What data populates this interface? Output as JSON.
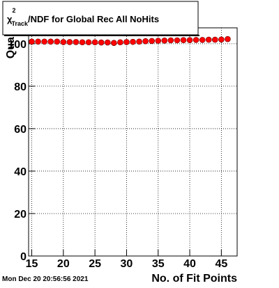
{
  "chart_data": {
    "type": "scatter",
    "title_symbol": "χ",
    "title_sup": "2",
    "title_sub": "Track",
    "title_rest": "/NDF for Global Rec All NoHits",
    "x_label": "No. of Fit Points",
    "y_label": "Quality",
    "timestamp": "Mon Dec 20 20:56:56 2021",
    "x": [
      15,
      16,
      17,
      18,
      19,
      20,
      21,
      22,
      23,
      24,
      25,
      26,
      27,
      28,
      29,
      30,
      31,
      32,
      33,
      34,
      35,
      36,
      37,
      38,
      39,
      40,
      41,
      42,
      43,
      44,
      45,
      46
    ],
    "values": [
      101,
      101,
      101,
      101,
      101,
      100.8,
      100.8,
      100.8,
      100.7,
      100.7,
      100.7,
      100.6,
      100.6,
      100.4,
      100.7,
      100.8,
      100.9,
      101,
      101.2,
      101.3,
      101.4,
      101.5,
      101.6,
      101.6,
      101.7,
      101.7,
      101.8,
      101.8,
      101.9,
      101.9,
      102,
      102.2
    ],
    "color": "#ff0000",
    "xlim": [
      14.5,
      47.5
    ],
    "xticks": [
      15,
      20,
      25,
      30,
      35,
      40,
      45
    ],
    "ylim": [
      0,
      107.5
    ],
    "yticks": [
      0,
      20,
      40,
      60,
      80,
      100
    ],
    "grid": true
  }
}
